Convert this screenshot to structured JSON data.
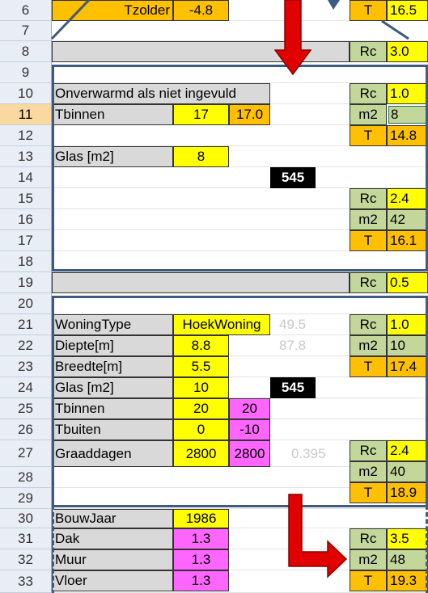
{
  "row_headers": [
    "6",
    "7",
    "8",
    "9",
    "10",
    "11",
    "12",
    "13",
    "14",
    "15",
    "16",
    "17",
    "18",
    "19",
    "20",
    "21",
    "22",
    "23",
    "24",
    "25",
    "26",
    "27",
    "28",
    "29",
    "30",
    "31",
    "32",
    "33"
  ],
  "selected_row": "11",
  "top": {
    "tzolder_label": "Tzolder",
    "tzolder_value": "-4.8",
    "t_label": "T",
    "t_value": "16.5"
  },
  "row8": {
    "rc_label": "Rc",
    "rc_value": "3.0"
  },
  "block1": {
    "note": "Onverwarmd als niet ingevuld",
    "tbinnen_label": "Tbinnen",
    "tbinnen_input": "17",
    "tbinnen_value": "17.0",
    "glas_label": "Glas [m2]",
    "glas_value": "8",
    "power": "545",
    "right1": {
      "rc_label": "Rc",
      "rc": "1.0",
      "m2_label": "m2",
      "m2": "8",
      "t_label": "T",
      "t": "14.8"
    },
    "right2": {
      "rc_label": "Rc",
      "rc": "2.4",
      "m2_label": "m2",
      "m2": "42",
      "t_label": "T",
      "t": "16.1"
    }
  },
  "row19": {
    "rc_label": "Rc",
    "rc_value": "0.5"
  },
  "block2": {
    "woningtype_label": "WoningType",
    "woningtype_value": "HoekWoning",
    "faint1": "49.5",
    "diepte_label": "Diepte[m]",
    "diepte_value": "8.8",
    "faint2": "87.8",
    "breedte_label": "Breedte[m]",
    "breedte_value": "5.5",
    "glas_label": "Glas [m2]",
    "glas_value": "10",
    "power": "545",
    "tbinnen_label": "Tbinnen",
    "tbinnen_a": "20",
    "tbinnen_b": "20",
    "tbuiten_label": "Tbuiten",
    "tbuiten_a": "0",
    "tbuiten_b": "-10",
    "graad_label": "Graaddagen",
    "graad_a": "2800",
    "graad_b": "2800",
    "faint3": "0.395",
    "right1": {
      "rc_label": "Rc",
      "rc": "1.0",
      "m2_label": "m2",
      "m2": "10",
      "t_label": "T",
      "t": "17.4"
    },
    "right2": {
      "rc_label": "Rc",
      "rc": "2.4",
      "m2_label": "m2",
      "m2": "40",
      "t_label": "T",
      "t": "18.9"
    }
  },
  "block3": {
    "bouwjaar_label": "BouwJaar",
    "bouwjaar_value": "1986",
    "dak_label": "Dak",
    "dak_value": "1.3",
    "muur_label": "Muur",
    "muur_value": "1.3",
    "vloer_label": "Vloer",
    "vloer_value": "1.3",
    "right": {
      "rc_label": "Rc",
      "rc": "3.5",
      "m2_label": "m2",
      "m2": "48",
      "t_label": "T",
      "t": "19.3"
    }
  },
  "colors": {
    "arrow": "#e00000",
    "frame": "#3d5a80",
    "input": "#ffff00",
    "result": "#ffc000",
    "rc_label": "#c4d79b",
    "alt_input": "#ff66ff"
  }
}
